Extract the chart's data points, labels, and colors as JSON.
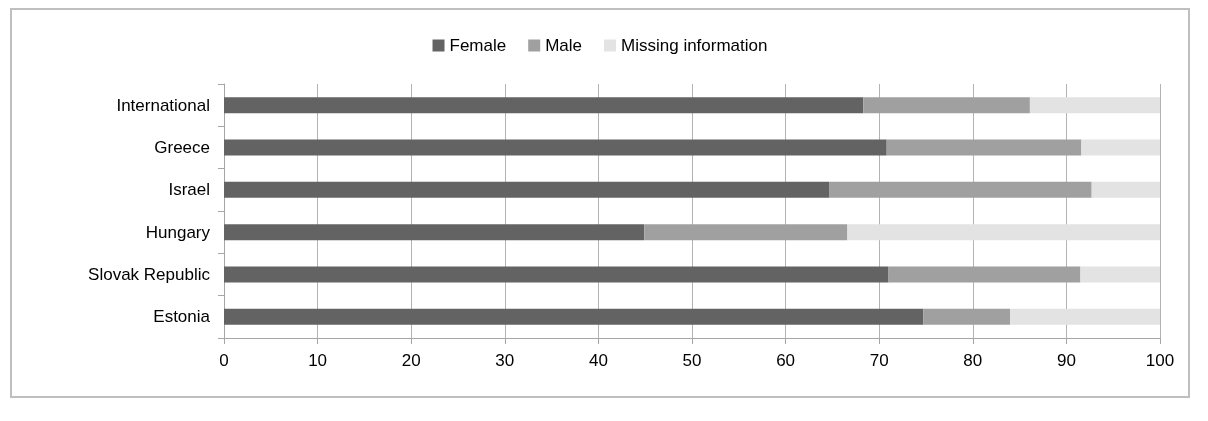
{
  "chart_data": {
    "type": "bar",
    "orientation": "horizontal",
    "stacked": true,
    "categories": [
      "International",
      "Greece",
      "Israel",
      "Hungary",
      "Slovak Republic",
      "Estonia"
    ],
    "series": [
      {
        "name": "Female",
        "color": "#636363",
        "values": [
          68.3,
          70.8,
          64.7,
          44.9,
          71.0,
          74.7
        ]
      },
      {
        "name": "Male",
        "color": "#a0a0a0",
        "values": [
          17.8,
          20.8,
          28.0,
          21.7,
          20.5,
          9.3
        ]
      },
      {
        "name": "Missing information",
        "color": "#e3e3e3",
        "values": [
          13.9,
          8.4,
          7.3,
          33.4,
          8.5,
          16.0
        ]
      }
    ],
    "xlim": [
      0,
      100
    ],
    "xticks": [
      0,
      10,
      20,
      30,
      40,
      50,
      60,
      70,
      80,
      90,
      100
    ],
    "grid": "x",
    "legend": "top"
  }
}
